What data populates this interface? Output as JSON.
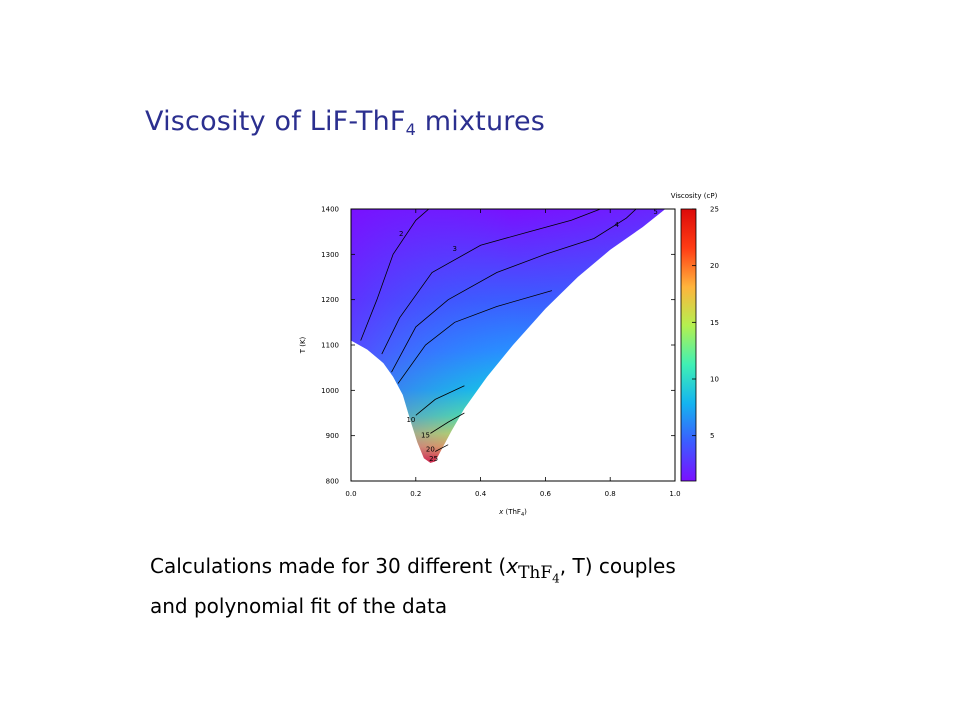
{
  "slide": {
    "title_main": "Viscosity of LiF-ThF",
    "title_sub": "4",
    "title_tail": " mixtures",
    "caption_line1_a": "Calculations made for 30 different (",
    "caption_var": "x",
    "caption_var_sub": "ThF",
    "caption_var_sub2": "4",
    "caption_line1_b": ", T) couples",
    "caption_line2": "and polynomial fit of the data"
  },
  "chart_data": {
    "type": "heatmap",
    "xlabel_a": "x",
    "xlabel_b": " (ThF",
    "xlabel_sub": "4",
    "xlabel_c": ")",
    "ylabel": "T (K)",
    "colorbar_label": "Viscosity (cP)",
    "xlim": [
      0,
      1
    ],
    "ylim": [
      800,
      1400
    ],
    "x_ticks": [
      "0.0",
      "0.2",
      "0.4",
      "0.6",
      "0.8",
      "1.0"
    ],
    "y_ticks": [
      "800",
      "900",
      "1000",
      "1100",
      "1200",
      "1300",
      "1400"
    ],
    "colorbar_range": [
      1,
      25
    ],
    "colorbar_ticks": [
      "5",
      "10",
      "15",
      "20",
      "25"
    ],
    "colormap": [
      "#7a10ff",
      "#3c5cff",
      "#14b4f0",
      "#40f0b4",
      "#b4f050",
      "#ffb43c",
      "#ff3c14",
      "#dc0a0a"
    ],
    "domain_boundary_left": [
      [
        0.0,
        1110
      ],
      [
        0.05,
        1090
      ],
      [
        0.1,
        1060
      ],
      [
        0.13,
        1030
      ],
      [
        0.16,
        990
      ],
      [
        0.185,
        930
      ],
      [
        0.205,
        885
      ],
      [
        0.225,
        850
      ],
      [
        0.245,
        840
      ],
      [
        0.26,
        843
      ],
      [
        0.28,
        870
      ],
      [
        0.31,
        910
      ],
      [
        0.35,
        960
      ]
    ],
    "domain_boundary_right": [
      [
        0.35,
        960
      ],
      [
        0.42,
        1030
      ],
      [
        0.5,
        1100
      ],
      [
        0.6,
        1180
      ],
      [
        0.7,
        1250
      ],
      [
        0.8,
        1310
      ],
      [
        0.9,
        1360
      ],
      [
        0.97,
        1400
      ]
    ],
    "contours": [
      {
        "label": "2",
        "label_pos": [
          0.155,
          1345
        ],
        "points": [
          [
            0.03,
            1110
          ],
          [
            0.08,
            1200
          ],
          [
            0.13,
            1300
          ],
          [
            0.2,
            1375
          ],
          [
            0.24,
            1400
          ]
        ]
      },
      {
        "label": "3",
        "label_pos": [
          0.32,
          1312
        ],
        "points": [
          [
            0.095,
            1080
          ],
          [
            0.15,
            1160
          ],
          [
            0.25,
            1260
          ],
          [
            0.4,
            1320
          ],
          [
            0.55,
            1350
          ],
          [
            0.68,
            1375
          ],
          [
            0.77,
            1400
          ]
        ]
      },
      {
        "label": "4",
        "label_pos": [
          0.82,
          1365
        ],
        "points": [
          [
            0.125,
            1040
          ],
          [
            0.2,
            1140
          ],
          [
            0.3,
            1200
          ],
          [
            0.45,
            1260
          ],
          [
            0.6,
            1300
          ],
          [
            0.75,
            1335
          ],
          [
            0.85,
            1380
          ],
          [
            0.88,
            1400
          ]
        ]
      },
      {
        "label": "5",
        "label_pos": [
          0.94,
          1393
        ],
        "points": [
          [
            0.145,
            1015
          ],
          [
            0.23,
            1100
          ],
          [
            0.32,
            1150
          ],
          [
            0.45,
            1185
          ],
          [
            0.62,
            1220
          ]
        ]
      },
      {
        "label": "10",
        "label_pos": [
          0.185,
          935
        ],
        "points": [
          [
            0.2,
            945
          ],
          [
            0.26,
            980
          ],
          [
            0.35,
            1010
          ]
        ]
      },
      {
        "label": "15",
        "label_pos": [
          0.23,
          900
        ],
        "points": [
          [
            0.245,
            905
          ],
          [
            0.3,
            930
          ],
          [
            0.35,
            950
          ]
        ]
      },
      {
        "label": "20",
        "label_pos": [
          0.245,
          870
        ],
        "points": [
          [
            0.26,
            865
          ],
          [
            0.3,
            880
          ]
        ]
      },
      {
        "label": "25",
        "label_pos": [
          0.255,
          848
        ],
        "points": []
      }
    ]
  }
}
